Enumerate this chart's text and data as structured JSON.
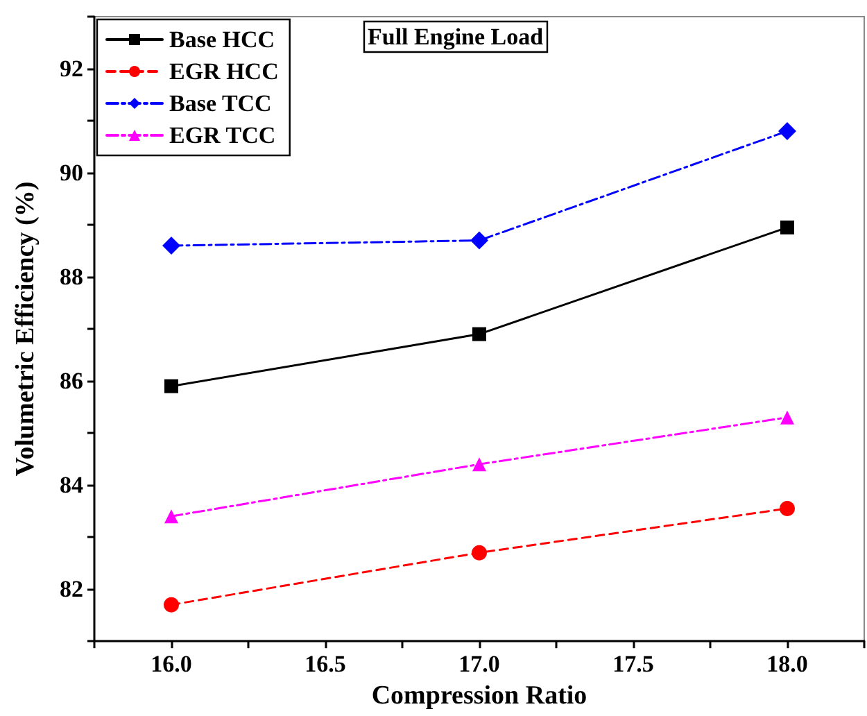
{
  "chart_data": {
    "type": "line",
    "title": "Full Engine Load",
    "xlabel": "Compression Ratio",
    "ylabel": "Volumetric Efficiency (%)",
    "x": [
      16,
      17,
      18
    ],
    "series": [
      {
        "name": "Base HCC",
        "color": "#000000",
        "values": [
          85.9,
          86.9,
          88.95
        ],
        "marker": "square",
        "line_style": "solid"
      },
      {
        "name": "EGR HCC",
        "color": "#ff0000",
        "values": [
          81.7,
          82.7,
          83.55
        ],
        "marker": "circle",
        "line_style": "dashed"
      },
      {
        "name": "Base TCC",
        "color": "#0000ff",
        "values": [
          88.6,
          88.7,
          90.8
        ],
        "marker": "diamond",
        "line_style": "dashdot"
      },
      {
        "name": "EGR TCC",
        "color": "#ff00ff",
        "values": [
          83.4,
          84.4,
          85.3
        ],
        "marker": "triangle",
        "line_style": "dashdot"
      }
    ],
    "xlim": [
      15.75,
      18.25
    ],
    "xticks": [
      {
        "value": 15.75,
        "label": null
      },
      {
        "value": 16,
        "label": "16.0"
      },
      {
        "value": 16.25,
        "label": null
      },
      {
        "value": 16.5,
        "label": "16.5"
      },
      {
        "value": 16.75,
        "label": null
      },
      {
        "value": 17,
        "label": "17.0"
      },
      {
        "value": 17.25,
        "label": null
      },
      {
        "value": 17.5,
        "label": "17.5"
      },
      {
        "value": 17.75,
        "label": null
      },
      {
        "value": 18,
        "label": "18.0"
      },
      {
        "value": 18.25,
        "label": null
      }
    ],
    "ylim": [
      81,
      93
    ],
    "yticks": [
      {
        "value": 81,
        "label": null
      },
      82,
      {
        "value": 83,
        "label": null
      },
      84,
      {
        "value": 85,
        "label": null
      },
      86,
      {
        "value": 87,
        "label": null
      },
      88,
      {
        "value": 89,
        "label": null
      },
      90,
      {
        "value": 91,
        "label": null
      },
      92,
      {
        "value": 93,
        "label": null
      }
    ],
    "grid": false,
    "legend": "top left"
  }
}
